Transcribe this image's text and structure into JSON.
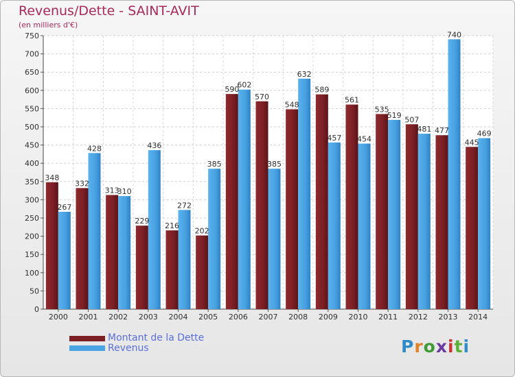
{
  "header": {
    "title": "Revenus/Dette - SAINT-AVIT",
    "subtitle": "(en milliers d'€)"
  },
  "legend": {
    "dette": "Montant de la Dette",
    "revenus": "Revenus"
  },
  "brand": {
    "name": "Proxiti",
    "letters": [
      "P",
      "r",
      "o",
      "x",
      "i",
      "t",
      "i"
    ],
    "colors": [
      "#2e8cc8",
      "#e0822a",
      "#3e9a36",
      "#6b3aa0",
      "#cc3333",
      "#5cb03a",
      "#2e8cc8"
    ]
  },
  "chart_data": {
    "type": "bar",
    "title": "Revenus/Dette - SAINT-AVIT",
    "subtitle": "(en milliers d'€)",
    "categories": [
      "2000",
      "2001",
      "2002",
      "2003",
      "2004",
      "2005",
      "2006",
      "2007",
      "2008",
      "2009",
      "2010",
      "2011",
      "2012",
      "2013",
      "2014"
    ],
    "series": [
      {
        "name": "Montant de la Dette",
        "color": "#7b1f24",
        "values": [
          348,
          332,
          313,
          229,
          216,
          202,
          590,
          570,
          548,
          589,
          561,
          535,
          507,
          477,
          445
        ]
      },
      {
        "name": "Revenus",
        "color": "#4aa3e3",
        "values": [
          267,
          428,
          310,
          436,
          272,
          385,
          602,
          385,
          632,
          457,
          454,
          519,
          481,
          740,
          469
        ]
      }
    ],
    "ylim": [
      0,
      750
    ],
    "yticks": [
      0,
      50,
      100,
      150,
      200,
      250,
      300,
      350,
      400,
      450,
      500,
      550,
      600,
      650,
      700,
      750
    ],
    "grid": true,
    "legend_position": "bottom-left"
  }
}
